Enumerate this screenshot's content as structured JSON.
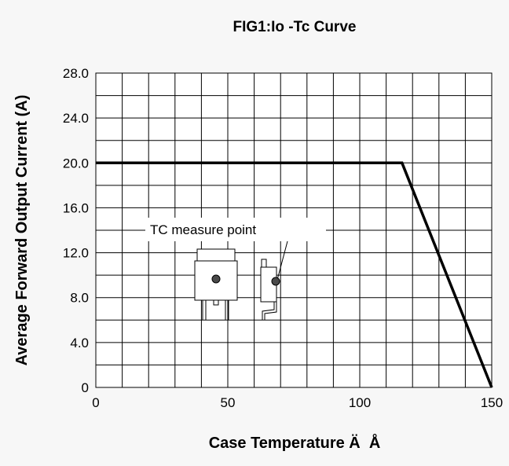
{
  "chart_data": {
    "type": "line",
    "title": "FIG1:Io -Tc Curve",
    "xlabel": "Case Temperature Ä  Å",
    "ylabel": "Average Forward Output Current (A)",
    "xlim": [
      0,
      150
    ],
    "ylim": [
      0,
      28
    ],
    "x_ticks": [
      "0",
      "50",
      "100",
      "150"
    ],
    "y_ticks": [
      "0",
      "4.0",
      "8.0",
      "12.0",
      "16.0",
      "20.0",
      "24.0",
      "28.0"
    ],
    "grid": true,
    "series": [
      {
        "x": [
          0,
          116,
          150
        ],
        "y": [
          20,
          20,
          0
        ]
      }
    ],
    "annotation": "TC measure point",
    "colors": {
      "background": "#f7f7f7",
      "plot_background": "#ffffff",
      "line": "#000000"
    }
  }
}
